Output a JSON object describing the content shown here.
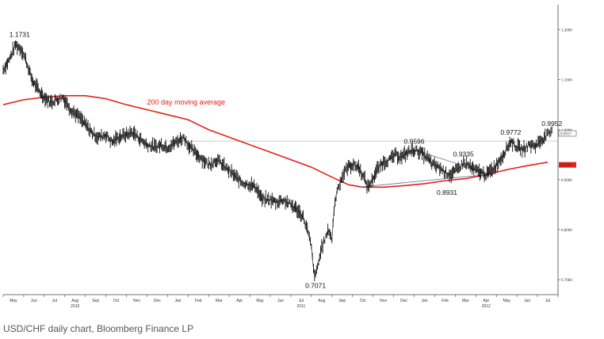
{
  "caption": "USD/CHF daily chart, Bloomberg Finance LP",
  "colors": {
    "price": "#111111",
    "moving_average": "#e2231a",
    "trendline": "#6a6aa8",
    "reference_line": "#bbbbbb",
    "current_price_box": "#e2231a"
  },
  "chart_data": {
    "type": "line",
    "title": "",
    "xlabel": "",
    "ylabel": "",
    "ylim": [
      0.67,
      1.25
    ],
    "y_axis_position": "right",
    "y_ticks": [
      "1.2000",
      "1.1000",
      "1.0000",
      "0.9000",
      "0.8000",
      "0.7000"
    ],
    "y_tick_values": [
      1.2,
      1.1,
      1.0,
      0.9,
      0.8,
      0.7
    ],
    "current_price_labels": [
      "0.9917",
      "0.9289"
    ],
    "x_months": [
      "May",
      "Jun",
      "Jul",
      "Aug",
      "Sep",
      "Oct",
      "Nov",
      "Dec",
      "Jan",
      "Feb",
      "Mar",
      "Apr",
      "May",
      "Jun",
      "Jul",
      "Aug",
      "Sep",
      "Oct",
      "Nov",
      "Dec",
      "Jan",
      "Feb",
      "Mar",
      "Apr",
      "May",
      "Jun",
      "Jul"
    ],
    "x_years": [
      {
        "label": "2010",
        "month_index": 3
      },
      {
        "label": "2011",
        "month_index": 14
      },
      {
        "label": "2012",
        "month_index": 23
      }
    ],
    "series": [
      {
        "name": "USD/CHF",
        "points": [
          [
            0,
            1.12
          ],
          [
            0.3,
            1.14
          ],
          [
            0.6,
            1.17
          ],
          [
            0.9,
            1.16
          ],
          [
            1.1,
            1.14
          ],
          [
            1.4,
            1.1
          ],
          [
            1.7,
            1.08
          ],
          [
            2.0,
            1.065
          ],
          [
            2.3,
            1.055
          ],
          [
            2.6,
            1.06
          ],
          [
            2.9,
            1.065
          ],
          [
            3.3,
            1.04
          ],
          [
            3.7,
            1.025
          ],
          [
            4.0,
            1.01
          ],
          [
            4.3,
            0.995
          ],
          [
            4.6,
            0.985
          ],
          [
            5.0,
            0.99
          ],
          [
            5.3,
            0.975
          ],
          [
            5.6,
            0.985
          ],
          [
            6.0,
            0.99
          ],
          [
            6.3,
            0.995
          ],
          [
            6.7,
            0.98
          ],
          [
            7.0,
            0.97
          ],
          [
            7.4,
            0.965
          ],
          [
            7.7,
            0.97
          ],
          [
            8.0,
            0.965
          ],
          [
            8.4,
            0.975
          ],
          [
            8.8,
            0.985
          ],
          [
            9.0,
            0.97
          ],
          [
            9.3,
            0.955
          ],
          [
            9.6,
            0.945
          ],
          [
            10.0,
            0.93
          ],
          [
            10.4,
            0.94
          ],
          [
            10.8,
            0.925
          ],
          [
            11.2,
            0.91
          ],
          [
            11.6,
            0.895
          ],
          [
            12.0,
            0.89
          ],
          [
            12.3,
            0.885
          ],
          [
            12.6,
            0.86
          ],
          [
            13.0,
            0.86
          ],
          [
            13.3,
            0.855
          ],
          [
            13.6,
            0.86
          ],
          [
            14.0,
            0.85
          ],
          [
            14.3,
            0.84
          ],
          [
            14.6,
            0.825
          ],
          [
            14.8,
            0.8
          ],
          [
            15.0,
            0.765
          ],
          [
            15.1,
            0.72
          ],
          [
            15.2,
            0.7071
          ],
          [
            15.35,
            0.735
          ],
          [
            15.5,
            0.765
          ],
          [
            15.7,
            0.785
          ],
          [
            15.85,
            0.8
          ],
          [
            16.0,
            0.78
          ],
          [
            16.1,
            0.84
          ],
          [
            16.25,
            0.88
          ],
          [
            16.4,
            0.895
          ],
          [
            16.55,
            0.91
          ],
          [
            16.75,
            0.925
          ],
          [
            17.0,
            0.93
          ],
          [
            17.3,
            0.925
          ],
          [
            17.6,
            0.9
          ],
          [
            17.75,
            0.885
          ],
          [
            17.9,
            0.895
          ],
          [
            18.2,
            0.92
          ],
          [
            18.5,
            0.935
          ],
          [
            18.8,
            0.94
          ],
          [
            19.1,
            0.95
          ],
          [
            19.4,
            0.945
          ],
          [
            19.7,
            0.955
          ],
          [
            20.0,
            0.9596
          ],
          [
            20.3,
            0.955
          ],
          [
            20.6,
            0.945
          ],
          [
            20.9,
            0.93
          ],
          [
            21.2,
            0.925
          ],
          [
            21.5,
            0.915
          ],
          [
            21.8,
            0.91
          ],
          [
            22.1,
            0.92
          ],
          [
            22.4,
            0.9335
          ],
          [
            22.6,
            0.93
          ],
          [
            22.9,
            0.92
          ],
          [
            23.2,
            0.915
          ],
          [
            23.5,
            0.91
          ],
          [
            23.8,
            0.92
          ],
          [
            24.1,
            0.935
          ],
          [
            24.4,
            0.955
          ],
          [
            24.7,
            0.9772
          ],
          [
            25.0,
            0.965
          ],
          [
            25.3,
            0.96
          ],
          [
            25.6,
            0.97
          ],
          [
            25.9,
            0.968
          ],
          [
            26.2,
            0.98
          ],
          [
            26.5,
            0.99
          ],
          [
            26.7,
            0.9952
          ]
        ]
      },
      {
        "name": "200 day moving average",
        "points": [
          [
            0,
            1.05
          ],
          [
            1,
            1.06
          ],
          [
            2,
            1.065
          ],
          [
            3,
            1.068
          ],
          [
            4,
            1.068
          ],
          [
            5,
            1.062
          ],
          [
            6,
            1.05
          ],
          [
            7,
            1.04
          ],
          [
            8,
            1.03
          ],
          [
            9,
            1.02
          ],
          [
            10,
            1.0
          ],
          [
            11,
            0.985
          ],
          [
            12,
            0.97
          ],
          [
            13,
            0.955
          ],
          [
            14,
            0.94
          ],
          [
            15,
            0.925
          ],
          [
            16,
            0.905
          ],
          [
            16.8,
            0.89
          ],
          [
            17.5,
            0.885
          ],
          [
            18.5,
            0.885
          ],
          [
            19.5,
            0.888
          ],
          [
            20.5,
            0.892
          ],
          [
            21.5,
            0.898
          ],
          [
            22.5,
            0.902
          ],
          [
            23.5,
            0.91
          ],
          [
            24.5,
            0.92
          ],
          [
            25.5,
            0.928
          ],
          [
            26.5,
            0.935
          ]
        ]
      }
    ],
    "trendlines": [
      {
        "points": [
          [
            17.3,
            0.885
          ],
          [
            24.0,
            0.912
          ]
        ]
      },
      {
        "points": [
          [
            20.0,
            0.9596
          ],
          [
            23.6,
            0.912
          ]
        ]
      }
    ],
    "reference_lines": [
      {
        "y": 0.9772,
        "from": 8.0,
        "to": 27.0
      }
    ],
    "annotations": [
      {
        "text": "1.1731",
        "x": 0.8,
        "y": 1.1731,
        "position": "above"
      },
      {
        "text": "0.7071",
        "x": 15.2,
        "y": 0.7071,
        "position": "below"
      },
      {
        "text": "0.9596",
        "x": 20.0,
        "y": 0.9596,
        "position": "above"
      },
      {
        "text": "0.9335",
        "x": 22.4,
        "y": 0.9335,
        "position": "above"
      },
      {
        "text": "0.8931",
        "x": 21.6,
        "y": 0.8931,
        "position": "below"
      },
      {
        "text": "0.9772",
        "x": 24.7,
        "y": 0.9772,
        "position": "above"
      },
      {
        "text": "0.9952",
        "x": 26.7,
        "y": 0.9952,
        "position": "above"
      },
      {
        "text": "200 day moving average",
        "x": 8.9,
        "y": 1.05,
        "position": "center",
        "color": "#e2231a"
      }
    ]
  }
}
